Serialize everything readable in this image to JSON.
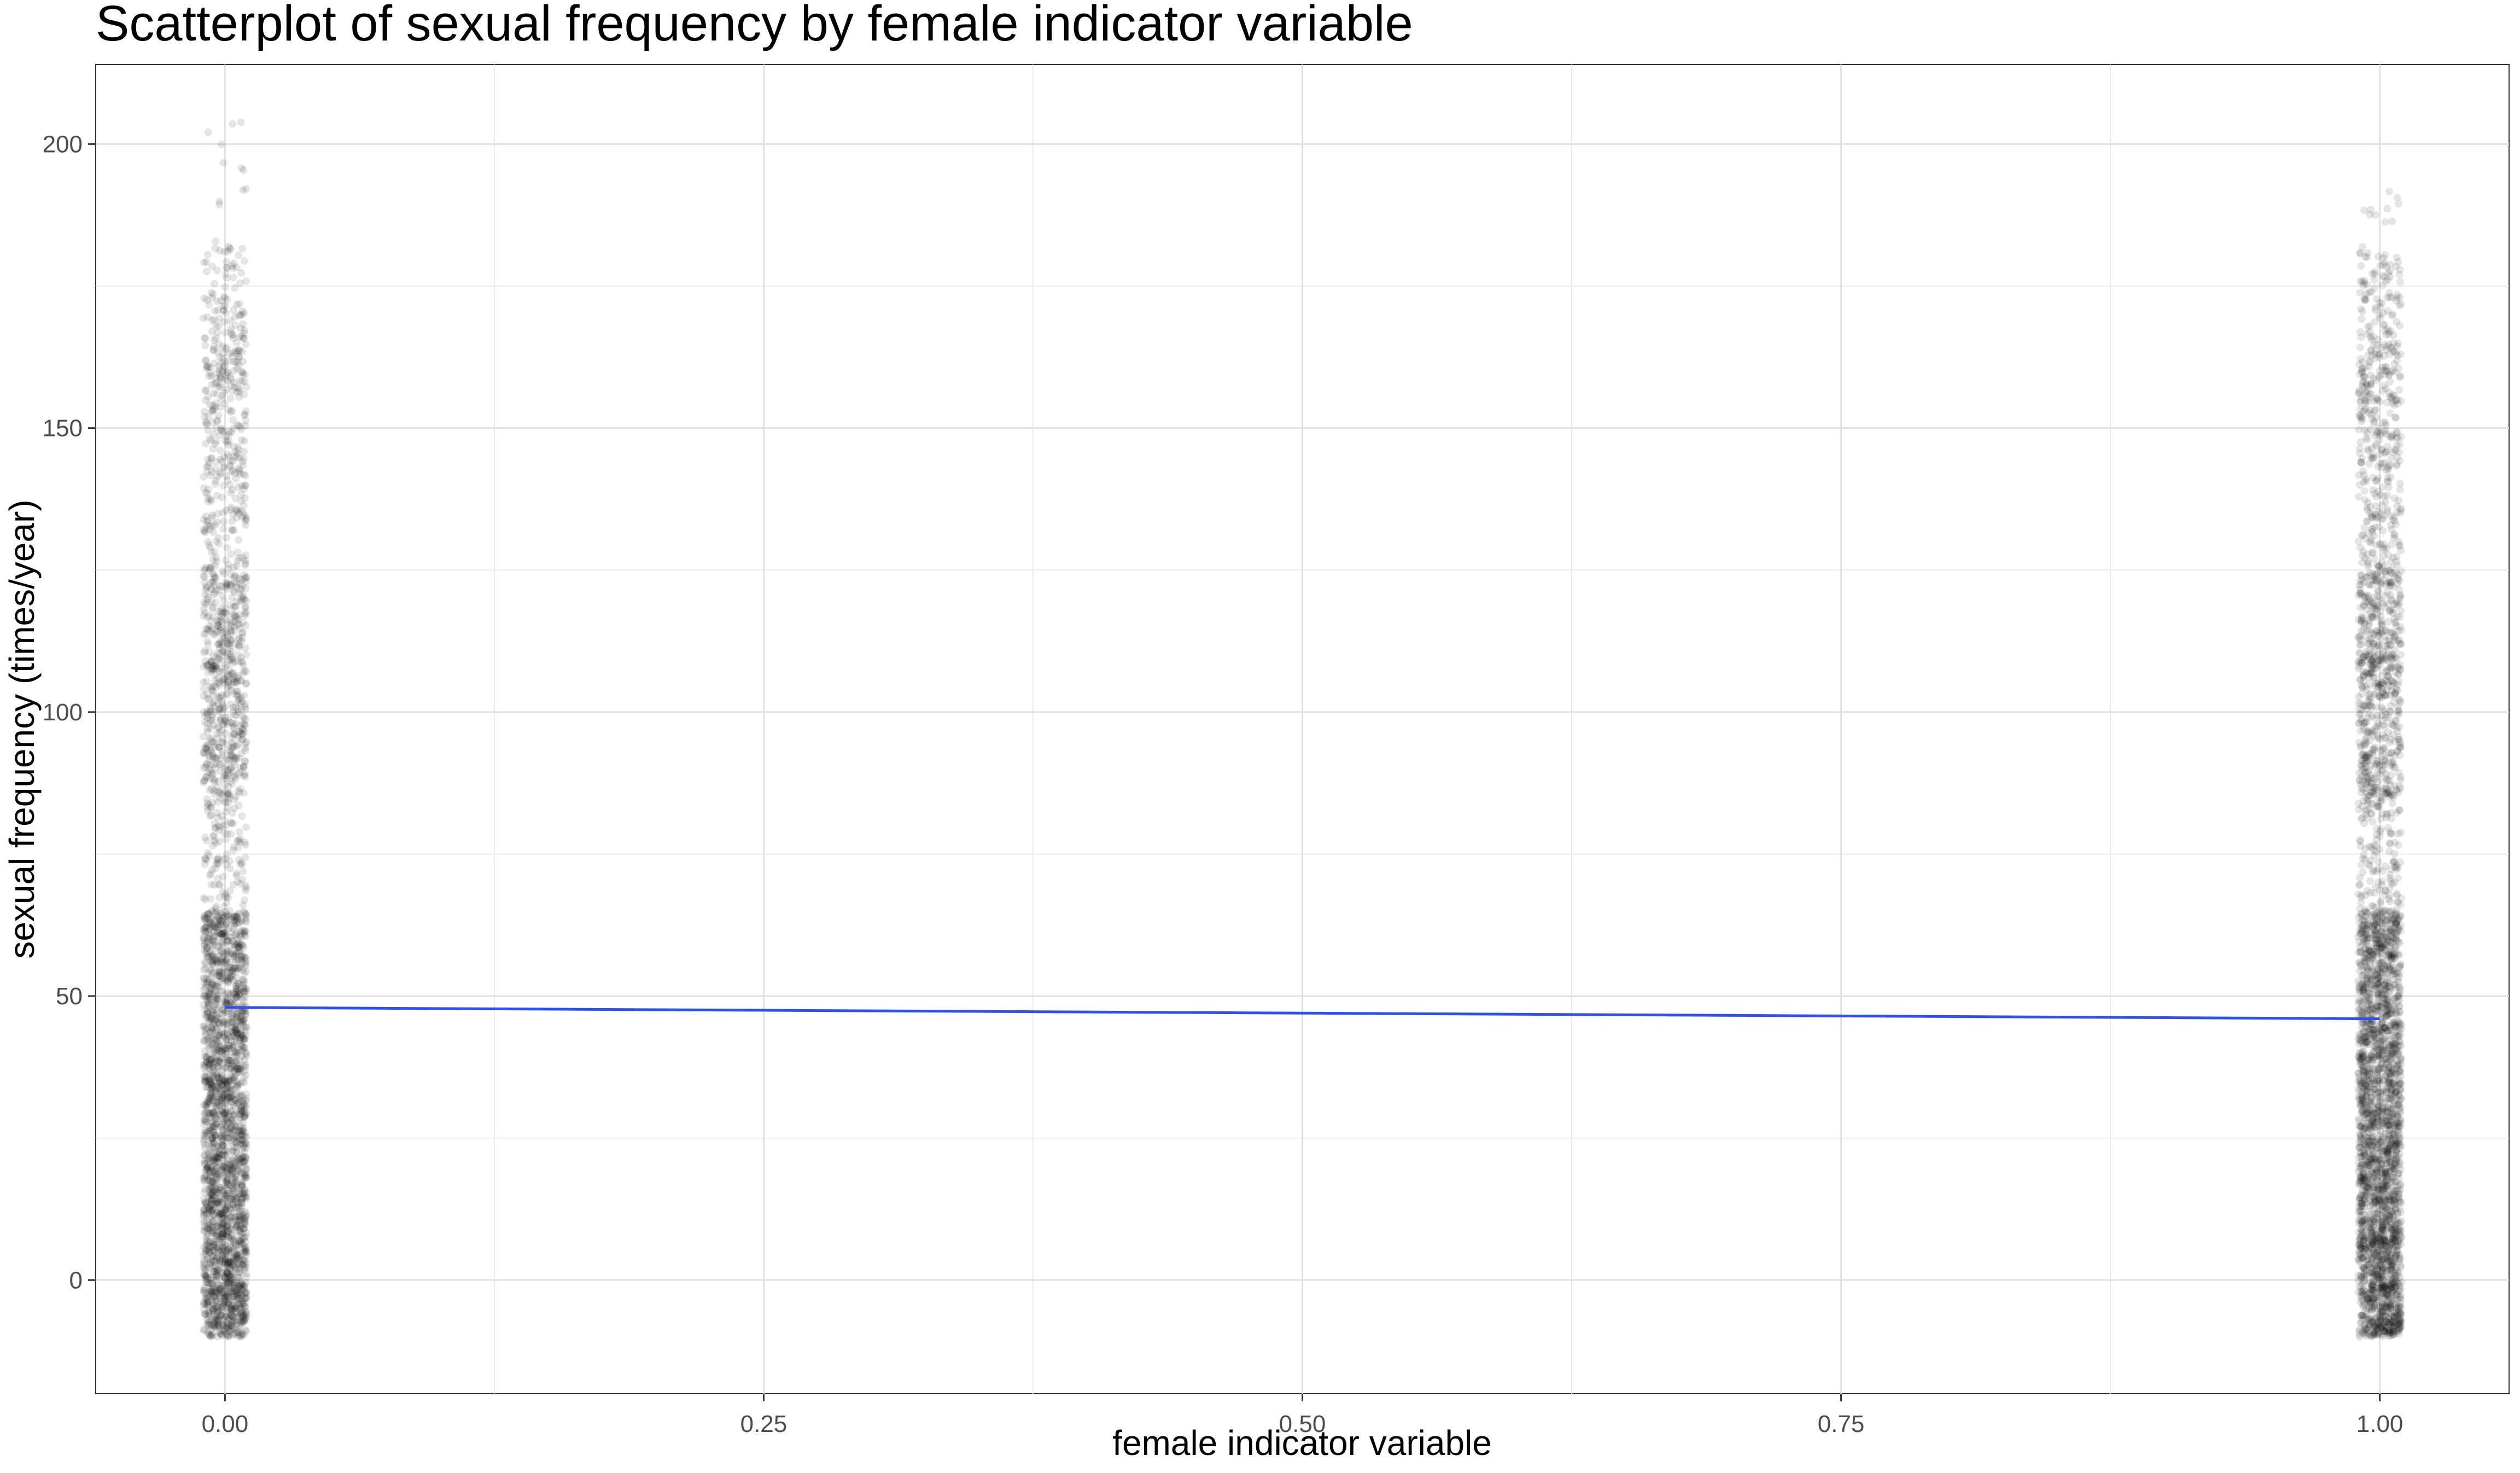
{
  "chart_data": {
    "type": "scatter",
    "title": "Scatterplot of sexual frequency by female indicator variable",
    "xlabel": "female indicator variable",
    "ylabel": "sexual frequency (times/year)",
    "xlim": [
      -0.06,
      1.06
    ],
    "ylim": [
      -20,
      214
    ],
    "x_ticks": [
      0.0,
      0.25,
      0.5,
      0.75,
      1.0
    ],
    "x_tick_labels": [
      "0.00",
      "0.25",
      "0.50",
      "0.75",
      "1.00"
    ],
    "y_ticks": [
      0,
      50,
      100,
      150,
      200
    ],
    "y_tick_labels": [
      "0",
      "50",
      "100",
      "150",
      "200"
    ],
    "grid": true,
    "legend": "none",
    "point_color": "#000000",
    "point_alpha": 0.1,
    "jitter_width": 0.01,
    "series": [
      {
        "x": 0,
        "y_range": [
          -10,
          204
        ],
        "bands": [
          {
            "y_range": [
              -10,
              10
            ],
            "n": 700
          },
          {
            "y_range": [
              10,
              25
            ],
            "n": 470
          },
          {
            "y_range": [
              25,
              40
            ],
            "n": 450
          },
          {
            "y_range": [
              40,
              52
            ],
            "n": 330
          },
          {
            "y_range": [
              52,
              65
            ],
            "n": 340
          },
          {
            "y_range": [
              65,
              85
            ],
            "n": 120
          },
          {
            "y_range": [
              85,
              125
            ],
            "n": 550
          },
          {
            "y_range": [
              125,
              140
            ],
            "n": 100
          },
          {
            "y_range": [
              140,
              165
            ],
            "n": 210
          },
          {
            "y_range": [
              165,
              182
            ],
            "n": 90
          },
          {
            "y_range": [
              182,
              205
            ],
            "n": 12
          }
        ]
      },
      {
        "x": 1,
        "y_range": [
          -10,
          191
        ],
        "bands": [
          {
            "y_range": [
              -10,
              10
            ],
            "n": 800
          },
          {
            "y_range": [
              10,
              25
            ],
            "n": 520
          },
          {
            "y_range": [
              25,
              40
            ],
            "n": 480
          },
          {
            "y_range": [
              40,
              52
            ],
            "n": 350
          },
          {
            "y_range": [
              52,
              65
            ],
            "n": 370
          },
          {
            "y_range": [
              65,
              85
            ],
            "n": 140
          },
          {
            "y_range": [
              85,
              125
            ],
            "n": 620
          },
          {
            "y_range": [
              125,
              140
            ],
            "n": 110
          },
          {
            "y_range": [
              140,
              165
            ],
            "n": 230
          },
          {
            "y_range": [
              165,
              182
            ],
            "n": 95
          },
          {
            "y_range": [
              182,
              192
            ],
            "n": 10
          }
        ]
      }
    ],
    "regression_line": {
      "color": "#3150E8",
      "x": [
        0,
        1
      ],
      "y": [
        48.0,
        46.0
      ]
    }
  }
}
